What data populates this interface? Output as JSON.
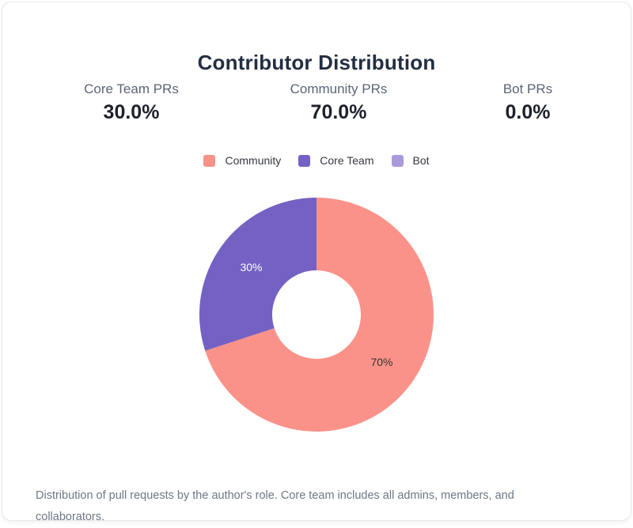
{
  "stats": [
    {
      "label": "Core Team PRs",
      "value": "30.0%"
    },
    {
      "label": "Community PRs",
      "value": "70.0%"
    },
    {
      "label": "Bot PRs",
      "value": "0.0%"
    }
  ],
  "description": "Distribution of pull requests by the author's role. Core team includes all admins, members, and collaborators.",
  "chart_data": {
    "type": "pie",
    "title": "Contributor Distribution",
    "donut": true,
    "donut_hole_ratio": 0.38,
    "start_angle_deg": 0,
    "direction": "clockwise",
    "legend_position": "top-center",
    "legend": [
      "Community",
      "Core Team",
      "Bot"
    ],
    "series": [
      {
        "name": "Community",
        "value": 70,
        "label": "70%",
        "color": "#fb9289",
        "label_color": "#333333"
      },
      {
        "name": "Core Team",
        "value": 30,
        "label": "30%",
        "color": "#7561c3",
        "label_color": "#ffffff"
      },
      {
        "name": "Bot",
        "value": 0,
        "label": "0%",
        "color": "#a99bda",
        "label_color": "#333333"
      }
    ]
  },
  "theme": {
    "title_color": "#242e42",
    "stat_label_color": "#5b6476",
    "stat_value_color": "#1c212b",
    "description_color": "#6e7786",
    "card_border_color": "#e7e8ec"
  }
}
